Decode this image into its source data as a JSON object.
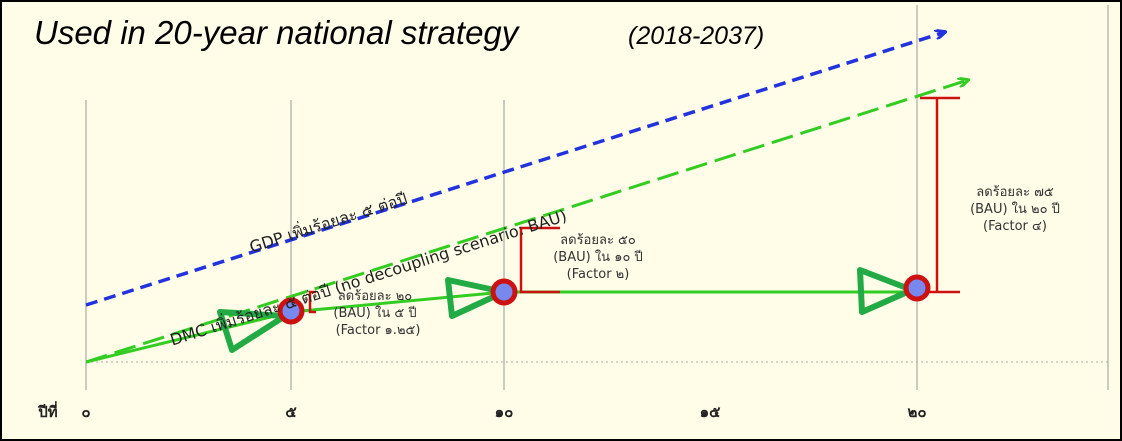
{
  "title": "Used in 20-year national strategy",
  "subtitle": "(2018-2037)",
  "axis": {
    "label": "ปีที่",
    "ticks": [
      "๐",
      "๕",
      "๑๐",
      "๑๕",
      "๒๐"
    ]
  },
  "lines": {
    "gdp": "GDP เพิ่มร้อยละ ๕ ต่อปี",
    "dmc": "DMC เพิ่มร้อยละ ๕ ต่อปี (no decoupling scenario: BAU)"
  },
  "annotations": [
    [
      "ลดร้อยละ ๒๐",
      "(BAU) ใน ๕ ปี",
      "(Factor ๑.๒๕)"
    ],
    [
      "ลดร้อยละ ๕๐",
      "(BAU) ใน ๑๐ ปี",
      "(Factor ๒)"
    ],
    [
      "ลดร้อยละ ๗๕",
      "(BAU) ใน ๒๐ ปี",
      "(Factor ๔)"
    ]
  ]
}
